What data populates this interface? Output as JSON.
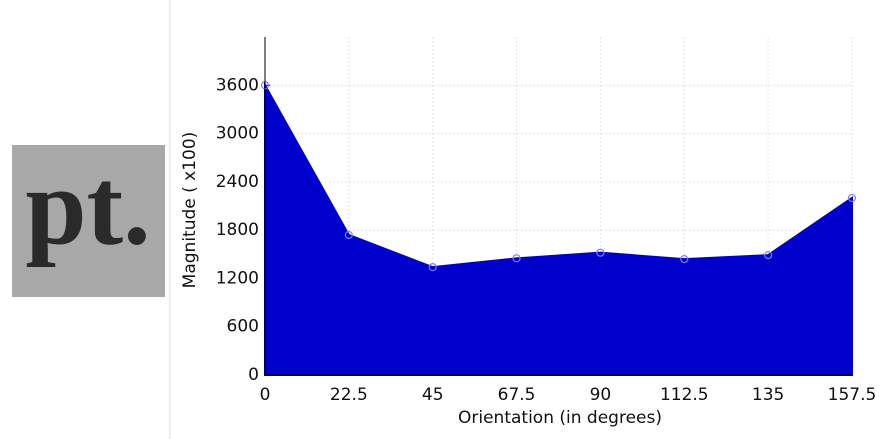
{
  "inset_image": {
    "text": "pt."
  },
  "chart_data": {
    "type": "area",
    "x_label": "Orientation (in degrees)",
    "y_label": "Magnitude ( x100)",
    "x": [
      0,
      22.5,
      45,
      67.5,
      90,
      112.5,
      135,
      157.5
    ],
    "series": [
      {
        "color": "#0000cc",
        "values": [
          3600,
          1740,
          1340,
          1450,
          1520,
          1440,
          1490,
          2200
        ]
      }
    ],
    "xlim": [
      0,
      157.5
    ],
    "xticks": [
      0,
      22.5,
      45,
      67.5,
      90,
      112.5,
      135,
      157.5
    ],
    "ylim": [
      0,
      4200
    ],
    "yticks": [
      0,
      600,
      1200,
      1800,
      2400,
      3000,
      3600
    ],
    "grid": true
  }
}
